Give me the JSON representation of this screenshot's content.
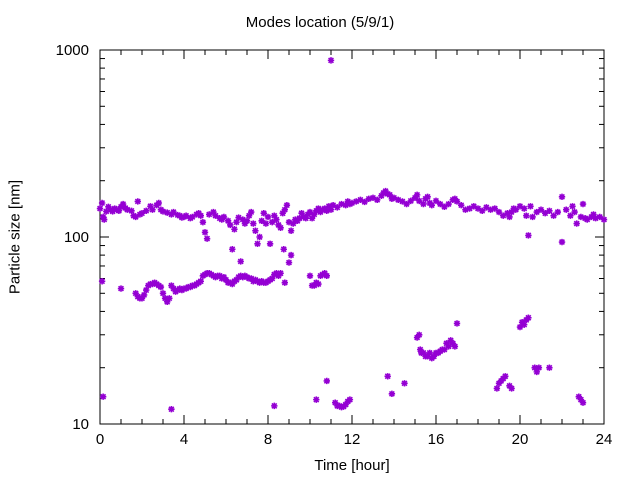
{
  "chart_data": {
    "type": "scatter",
    "title": "Modes location (5/9/1)",
    "xlabel": "Time [hour]",
    "ylabel": "Particle size [nm]",
    "xlim": [
      0,
      24
    ],
    "ylim": [
      10,
      1000
    ],
    "yscale": "log",
    "x_ticks": [
      0,
      4,
      8,
      12,
      16,
      20,
      24
    ],
    "x_tick_labels": [
      "0",
      "4",
      "8",
      "12",
      "16",
      "20",
      "24"
    ],
    "y_ticks": [
      10,
      100,
      1000
    ],
    "y_tick_labels": [
      "10",
      "100",
      "1000"
    ],
    "grid": false,
    "marker": "asterisk",
    "color": "#9400d3",
    "series": [
      {
        "points": [
          [
            0.0,
            142
          ],
          [
            0.1,
            152
          ],
          [
            0.15,
            128
          ],
          [
            0.2,
            124
          ],
          [
            0.3,
            137
          ],
          [
            0.4,
            145
          ],
          [
            0.5,
            140
          ],
          [
            0.6,
            137
          ],
          [
            0.7,
            142
          ],
          [
            0.8,
            140
          ],
          [
            0.9,
            138
          ],
          [
            1.0,
            145
          ],
          [
            1.1,
            150
          ],
          [
            1.2,
            143
          ],
          [
            1.3,
            140
          ],
          [
            1.5,
            138
          ],
          [
            1.6,
            130
          ],
          [
            1.7,
            128
          ],
          [
            1.8,
            155
          ],
          [
            1.9,
            132
          ],
          [
            2.0,
            134
          ],
          [
            2.2,
            138
          ],
          [
            2.4,
            146
          ],
          [
            2.5,
            140
          ],
          [
            2.7,
            148
          ],
          [
            2.8,
            152
          ],
          [
            2.9,
            140
          ],
          [
            3.0,
            137
          ],
          [
            3.2,
            135
          ],
          [
            3.4,
            132
          ],
          [
            3.5,
            136
          ],
          [
            3.7,
            131
          ],
          [
            3.8,
            130
          ],
          [
            3.9,
            127
          ],
          [
            4.0,
            128
          ],
          [
            4.1,
            130
          ],
          [
            4.3,
            126
          ],
          [
            4.4,
            128
          ],
          [
            4.6,
            132
          ],
          [
            4.7,
            134
          ],
          [
            4.8,
            130
          ],
          [
            4.9,
            120
          ],
          [
            5.0,
            106
          ],
          [
            5.1,
            98
          ],
          [
            5.2,
            132
          ],
          [
            5.4,
            136
          ],
          [
            5.5,
            130
          ],
          [
            5.7,
            126
          ],
          [
            5.8,
            124
          ],
          [
            5.9,
            128
          ],
          [
            6.1,
            122
          ],
          [
            6.2,
            116
          ],
          [
            6.3,
            86
          ],
          [
            6.4,
            110
          ],
          [
            6.5,
            120
          ],
          [
            6.6,
            127
          ],
          [
            6.7,
            74
          ],
          [
            6.8,
            124
          ],
          [
            6.9,
            118
          ],
          [
            7.0,
            122
          ],
          [
            7.1,
            130
          ],
          [
            7.2,
            136
          ],
          [
            7.3,
            118
          ],
          [
            7.4,
            108
          ],
          [
            7.5,
            92
          ],
          [
            7.6,
            100
          ],
          [
            7.7,
            122
          ],
          [
            7.8,
            134
          ],
          [
            7.9,
            118
          ],
          [
            8.0,
            128
          ],
          [
            8.1,
            92
          ],
          [
            8.2,
            120
          ],
          [
            8.3,
            130
          ],
          [
            8.4,
            124
          ],
          [
            8.5,
            116
          ],
          [
            8.6,
            112
          ],
          [
            8.7,
            134
          ],
          [
            8.75,
            86
          ],
          [
            8.8,
            140
          ],
          [
            8.9,
            148
          ],
          [
            9.0,
            120
          ],
          [
            9.1,
            108
          ],
          [
            9.2,
            118
          ],
          [
            9.3,
            124
          ],
          [
            9.4,
            122
          ],
          [
            9.5,
            126
          ],
          [
            9.6,
            134
          ],
          [
            9.7,
            128
          ],
          [
            9.8,
            126
          ],
          [
            9.9,
            132
          ],
          [
            10.0,
            136
          ],
          [
            10.1,
            126
          ],
          [
            10.2,
            132
          ],
          [
            10.3,
            138
          ],
          [
            10.4,
            142
          ],
          [
            10.5,
            136
          ],
          [
            10.6,
            140
          ],
          [
            10.7,
            142
          ],
          [
            10.8,
            138
          ],
          [
            10.9,
            146
          ],
          [
            11.0,
            140
          ],
          [
            11.1,
            148
          ],
          [
            11.3,
            144
          ],
          [
            11.5,
            150
          ],
          [
            11.7,
            148
          ],
          [
            11.8,
            155
          ],
          [
            11.9,
            150
          ],
          [
            12.0,
            152
          ],
          [
            12.2,
            155
          ],
          [
            12.4,
            158
          ],
          [
            12.6,
            154
          ],
          [
            12.8,
            160
          ],
          [
            13.0,
            162
          ],
          [
            13.2,
            158
          ],
          [
            13.4,
            166
          ],
          [
            13.5,
            172
          ],
          [
            13.6,
            176
          ],
          [
            13.7,
            170
          ],
          [
            13.8,
            168
          ],
          [
            13.9,
            160
          ],
          [
            14.0,
            162
          ],
          [
            14.2,
            158
          ],
          [
            14.4,
            155
          ],
          [
            14.6,
            150
          ],
          [
            14.8,
            156
          ],
          [
            15.0,
            162
          ],
          [
            15.1,
            168
          ],
          [
            15.2,
            156
          ],
          [
            15.4,
            150
          ],
          [
            15.5,
            160
          ],
          [
            15.6,
            164
          ],
          [
            15.7,
            152
          ],
          [
            15.8,
            148
          ],
          [
            16.0,
            156
          ],
          [
            16.2,
            150
          ],
          [
            16.4,
            145
          ],
          [
            16.6,
            150
          ],
          [
            16.8,
            158
          ],
          [
            16.9,
            160
          ],
          [
            17.0,
            155
          ],
          [
            17.2,
            148
          ],
          [
            17.4,
            140
          ],
          [
            17.6,
            142
          ],
          [
            17.8,
            146
          ],
          [
            18.0,
            142
          ],
          [
            18.2,
            138
          ],
          [
            18.4,
            144
          ],
          [
            18.6,
            140
          ],
          [
            18.8,
            142
          ],
          [
            19.0,
            136
          ],
          [
            19.2,
            130
          ],
          [
            19.4,
            134
          ],
          [
            19.5,
            128
          ],
          [
            19.6,
            136
          ],
          [
            19.7,
            142
          ],
          [
            19.8,
            140
          ],
          [
            20.0,
            146
          ],
          [
            20.2,
            142
          ],
          [
            20.3,
            130
          ],
          [
            20.4,
            102
          ],
          [
            20.5,
            146
          ],
          [
            20.6,
            128
          ],
          [
            20.8,
            136
          ],
          [
            21.0,
            140
          ],
          [
            21.2,
            134
          ],
          [
            21.4,
            138
          ],
          [
            21.6,
            130
          ],
          [
            21.8,
            136
          ],
          [
            22.0,
            94
          ],
          [
            22.0,
            164
          ],
          [
            22.2,
            140
          ],
          [
            22.4,
            130
          ],
          [
            22.5,
            146
          ],
          [
            22.6,
            136
          ],
          [
            22.7,
            118
          ],
          [
            22.9,
            128
          ],
          [
            23.0,
            150
          ],
          [
            23.1,
            126
          ],
          [
            23.2,
            124
          ],
          [
            23.4,
            128
          ],
          [
            23.5,
            132
          ],
          [
            23.6,
            126
          ],
          [
            23.8,
            128
          ],
          [
            24.0,
            124
          ]
        ]
      },
      {
        "points": [
          [
            0.1,
            58
          ],
          [
            1.0,
            53
          ],
          [
            1.7,
            50
          ],
          [
            1.8,
            48
          ],
          [
            1.9,
            47
          ],
          [
            2.0,
            47
          ],
          [
            2.1,
            49
          ],
          [
            2.2,
            52
          ],
          [
            2.3,
            55
          ],
          [
            2.4,
            56
          ],
          [
            2.5,
            56
          ],
          [
            2.6,
            57
          ],
          [
            2.7,
            56
          ],
          [
            2.8,
            55
          ],
          [
            2.9,
            54
          ],
          [
            3.0,
            50
          ],
          [
            3.1,
            47
          ],
          [
            3.2,
            45
          ],
          [
            3.3,
            47
          ],
          [
            3.4,
            55
          ],
          [
            3.5,
            53
          ],
          [
            3.6,
            51
          ],
          [
            3.7,
            52
          ],
          [
            3.8,
            53
          ],
          [
            3.9,
            52
          ],
          [
            4.0,
            53
          ],
          [
            4.1,
            53
          ],
          [
            4.2,
            54
          ],
          [
            4.3,
            54
          ],
          [
            4.4,
            55
          ],
          [
            4.5,
            55
          ],
          [
            4.6,
            56
          ],
          [
            4.7,
            57
          ],
          [
            4.8,
            58
          ],
          [
            4.9,
            62
          ],
          [
            5.0,
            63
          ],
          [
            5.1,
            64
          ],
          [
            5.2,
            64
          ],
          [
            5.3,
            63
          ],
          [
            5.4,
            62
          ],
          [
            5.5,
            61
          ],
          [
            5.6,
            62
          ],
          [
            5.7,
            62
          ],
          [
            5.8,
            60
          ],
          [
            5.9,
            61
          ],
          [
            6.0,
            59
          ],
          [
            6.1,
            57
          ],
          [
            6.2,
            57
          ],
          [
            6.3,
            56
          ],
          [
            6.4,
            58
          ],
          [
            6.5,
            59
          ],
          [
            6.6,
            61
          ],
          [
            6.7,
            62
          ],
          [
            6.8,
            61
          ],
          [
            6.9,
            62
          ],
          [
            7.0,
            61
          ],
          [
            7.1,
            60
          ],
          [
            7.2,
            60
          ],
          [
            7.3,
            58
          ],
          [
            7.4,
            59
          ],
          [
            7.5,
            58
          ],
          [
            7.6,
            57
          ],
          [
            7.7,
            58
          ],
          [
            7.8,
            57
          ],
          [
            7.9,
            57
          ],
          [
            8.0,
            58
          ],
          [
            8.1,
            59
          ],
          [
            8.2,
            60
          ],
          [
            8.3,
            63
          ],
          [
            8.4,
            64
          ],
          [
            8.5,
            62
          ],
          [
            8.6,
            64
          ],
          [
            8.8,
            57
          ],
          [
            9.0,
            73
          ],
          [
            9.1,
            80
          ],
          [
            10.0,
            62
          ],
          [
            10.1,
            55
          ],
          [
            10.2,
            55
          ],
          [
            10.3,
            57
          ],
          [
            10.4,
            56
          ],
          [
            10.5,
            62
          ],
          [
            10.6,
            63
          ],
          [
            10.7,
            64
          ],
          [
            10.8,
            62
          ]
        ]
      },
      {
        "points": [
          [
            0.15,
            14
          ],
          [
            3.4,
            12
          ],
          [
            8.3,
            12.5
          ],
          [
            10.3,
            13.5
          ],
          [
            10.8,
            17
          ],
          [
            11.0,
            880
          ],
          [
            11.2,
            13
          ],
          [
            11.3,
            12.5
          ],
          [
            11.4,
            12.5
          ],
          [
            11.5,
            12.3
          ],
          [
            11.6,
            12.4
          ],
          [
            11.7,
            12.7
          ],
          [
            11.8,
            13.2
          ],
          [
            11.9,
            13.5
          ],
          [
            13.7,
            18
          ],
          [
            13.9,
            14.5
          ],
          [
            14.5,
            16.5
          ],
          [
            15.1,
            29
          ],
          [
            15.2,
            30
          ],
          [
            15.25,
            25
          ],
          [
            15.3,
            24
          ],
          [
            15.4,
            24
          ],
          [
            15.5,
            23
          ],
          [
            15.6,
            23
          ],
          [
            15.7,
            24
          ],
          [
            15.8,
            22.5
          ],
          [
            15.9,
            23
          ],
          [
            16.0,
            24
          ],
          [
            16.1,
            24
          ],
          [
            16.2,
            24.5
          ],
          [
            16.3,
            25
          ],
          [
            16.4,
            25
          ],
          [
            16.5,
            27
          ],
          [
            16.6,
            26
          ],
          [
            16.7,
            28
          ],
          [
            16.8,
            27
          ],
          [
            16.9,
            26
          ],
          [
            17.0,
            34.5
          ],
          [
            18.9,
            15.5
          ],
          [
            19.0,
            16.5
          ],
          [
            19.1,
            17
          ],
          [
            19.2,
            17.5
          ],
          [
            19.3,
            18
          ],
          [
            19.5,
            16
          ],
          [
            19.6,
            15.5
          ],
          [
            20.0,
            33
          ],
          [
            20.1,
            35
          ],
          [
            20.2,
            34
          ],
          [
            20.3,
            36
          ],
          [
            20.4,
            37
          ],
          [
            20.7,
            20
          ],
          [
            20.8,
            19
          ],
          [
            20.9,
            20
          ],
          [
            21.4,
            20
          ],
          [
            22.8,
            14
          ],
          [
            22.9,
            13.5
          ],
          [
            23.0,
            13
          ]
        ]
      }
    ]
  }
}
